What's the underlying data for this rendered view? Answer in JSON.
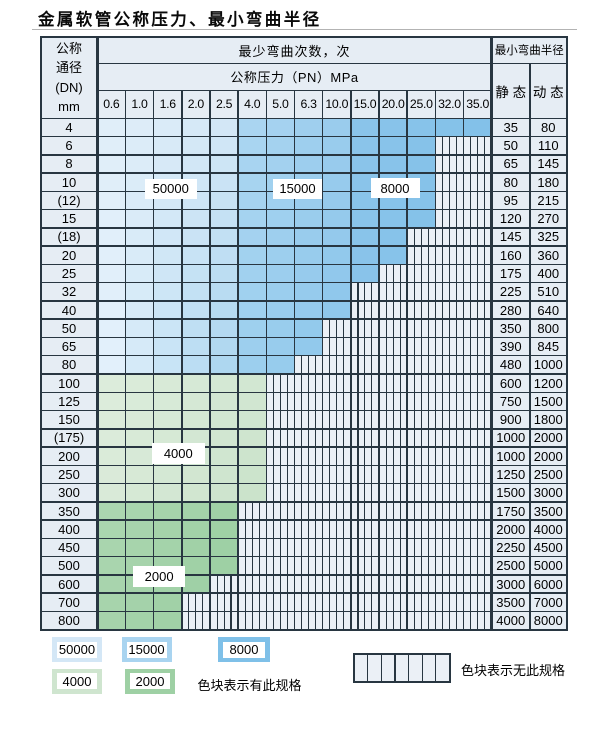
{
  "title": "金属软管公称压力、最小弯曲半径",
  "colors": {
    "grid_line": "#283641",
    "header_bg": "#e6edf4",
    "hatch_bg": "#ebf0f6",
    "blue_region_50000": {
      "tl": "#e0eef9",
      "tr": "#d3e7f6",
      "bl": "#e2f0fb",
      "br": "#aed7f0"
    },
    "blue_region_15000": {
      "tl": "#aad5f1",
      "tr": "#9acced",
      "bl": "#9ccfee",
      "br": "#8cc6eb"
    },
    "blue_region_8000": {
      "tl": "#8ac4ea",
      "tr": "#83c1e9",
      "bl": "#88c3ea",
      "br": "#7fbfe8"
    },
    "green_4000": {
      "tl": "#dcecdb",
      "tr": "#d2e7d2",
      "bl": "#d9ead8",
      "br": "#cbe3cb"
    },
    "green_2000": {
      "tl": "#abd6b0",
      "tr": "#a0d1a6",
      "bl": "#a6d3ab",
      "br": "#9bcea2"
    },
    "label_box_bg": "#ffffff"
  },
  "table": {
    "dn_header_lines": [
      "公称",
      "通径",
      "(DN)",
      "mm"
    ],
    "bend_times_header": "最少弯曲次数，次",
    "pressure_header": "公称压力（PN）MPa",
    "pressure_columns": [
      "0.6",
      "1.0",
      "1.6",
      "2.0",
      "2.5",
      "4.0",
      "5.0",
      "6.3",
      "10.0",
      "15.0",
      "20.0",
      "25.0",
      "32.0",
      "35.0"
    ],
    "radius_header": "最小弯曲半径",
    "static_header": "静 态",
    "dynamic_header": "动 态",
    "rows": [
      {
        "dn": "4",
        "zone": "blue",
        "max_pn": "35.0",
        "static": "35",
        "dynamic": "80"
      },
      {
        "dn": "6",
        "zone": "blue",
        "max_pn": "25.0",
        "static": "50",
        "dynamic": "110"
      },
      {
        "dn": "8",
        "zone": "blue",
        "max_pn": "25.0",
        "static": "65",
        "dynamic": "145"
      },
      {
        "dn": "10",
        "zone": "blue",
        "max_pn": "25.0",
        "static": "80",
        "dynamic": "180"
      },
      {
        "dn": "(12)",
        "zone": "blue",
        "max_pn": "25.0",
        "static": "95",
        "dynamic": "215"
      },
      {
        "dn": "15",
        "zone": "blue",
        "max_pn": "25.0",
        "static": "120",
        "dynamic": "270"
      },
      {
        "dn": "(18)",
        "zone": "blue",
        "max_pn": "20.0",
        "static": "145",
        "dynamic": "325"
      },
      {
        "dn": "20",
        "zone": "blue",
        "max_pn": "20.0",
        "static": "160",
        "dynamic": "360"
      },
      {
        "dn": "25",
        "zone": "blue",
        "max_pn": "15.0",
        "static": "175",
        "dynamic": "400"
      },
      {
        "dn": "32",
        "zone": "blue",
        "max_pn": "10.0",
        "static": "225",
        "dynamic": "510"
      },
      {
        "dn": "40",
        "zone": "blue",
        "max_pn": "10.0",
        "static": "280",
        "dynamic": "640"
      },
      {
        "dn": "50",
        "zone": "blue",
        "max_pn": "6.3",
        "static": "350",
        "dynamic": "800"
      },
      {
        "dn": "65",
        "zone": "blue",
        "max_pn": "6.3",
        "static": "390",
        "dynamic": "845"
      },
      {
        "dn": "80",
        "zone": "blue",
        "max_pn": "5.0",
        "static": "480",
        "dynamic": "1000"
      },
      {
        "dn": "100",
        "zone": "green4000",
        "max_pn": "4.0",
        "static": "600",
        "dynamic": "1200"
      },
      {
        "dn": "125",
        "zone": "green4000",
        "max_pn": "4.0",
        "static": "750",
        "dynamic": "1500"
      },
      {
        "dn": "150",
        "zone": "green4000",
        "max_pn": "4.0",
        "static": "900",
        "dynamic": "1800"
      },
      {
        "dn": "(175)",
        "zone": "green4000",
        "max_pn": "4.0",
        "static": "1000",
        "dynamic": "2000"
      },
      {
        "dn": "200",
        "zone": "green4000",
        "max_pn": "4.0",
        "static": "1000",
        "dynamic": "2000"
      },
      {
        "dn": "250",
        "zone": "green4000",
        "max_pn": "4.0",
        "static": "1250",
        "dynamic": "2500"
      },
      {
        "dn": "300",
        "zone": "green4000",
        "max_pn": "4.0",
        "static": "1500",
        "dynamic": "3000"
      },
      {
        "dn": "350",
        "zone": "green2000",
        "max_pn": "2.5",
        "static": "1750",
        "dynamic": "3500"
      },
      {
        "dn": "400",
        "zone": "green2000",
        "max_pn": "2.5",
        "static": "2000",
        "dynamic": "4000"
      },
      {
        "dn": "450",
        "zone": "green2000",
        "max_pn": "2.5",
        "static": "2250",
        "dynamic": "4500"
      },
      {
        "dn": "500",
        "zone": "green2000",
        "max_pn": "2.5",
        "static": "2500",
        "dynamic": "5000"
      },
      {
        "dn": "600",
        "zone": "green2000",
        "max_pn": "2.0",
        "static": "3000",
        "dynamic": "6000"
      },
      {
        "dn": "700",
        "zone": "green2000",
        "max_pn": "1.6",
        "static": "3500",
        "dynamic": "7000"
      },
      {
        "dn": "800",
        "zone": "green2000",
        "max_pn": "1.6",
        "static": "4000",
        "dynamic": "8000"
      }
    ]
  },
  "region_labels": [
    {
      "text": "50000"
    },
    {
      "text": "15000"
    },
    {
      "text": "8000"
    },
    {
      "text": "4000"
    },
    {
      "text": "2000"
    }
  ],
  "legend": {
    "swatches": [
      {
        "label": "50000",
        "color": "#d4e7f6"
      },
      {
        "label": "15000",
        "color": "#a9d4f0"
      },
      {
        "label": "8000",
        "color": "#7fc0e8"
      },
      {
        "label": "4000",
        "color": "#cfe5cf"
      },
      {
        "label": "2000",
        "color": "#9ed0a4"
      }
    ],
    "has_spec_note": "色块表示有此规格",
    "no_spec_note": "色块表示无此规格"
  },
  "chart_data": {
    "type": "table",
    "title": "金属软管公称压力、最小弯曲半径",
    "columns": [
      "公称通径(DN)mm",
      "0.6",
      "1.0",
      "1.6",
      "2.0",
      "2.5",
      "4.0",
      "5.0",
      "6.3",
      "10.0",
      "15.0",
      "20.0",
      "25.0",
      "32.0",
      "35.0",
      "静态",
      "动态"
    ],
    "bend_cycle_regions": [
      {
        "value": "50000",
        "pn_columns": [
          "0.6",
          "2.5"
        ],
        "dn_rows": [
          "4",
          "80"
        ]
      },
      {
        "value": "15000",
        "pn_columns": [
          "4.0",
          "10.0"
        ],
        "dn_rows": [
          "4",
          "80"
        ]
      },
      {
        "value": "8000",
        "pn_columns": [
          "15.0",
          "35.0"
        ],
        "dn_rows": [
          "4",
          "80"
        ]
      },
      {
        "value": "4000",
        "pn_columns": [
          "0.6",
          "4.0"
        ],
        "dn_rows": [
          "100",
          "300"
        ]
      },
      {
        "value": "2000",
        "pn_columns": [
          "0.6",
          "2.5"
        ],
        "dn_rows": [
          "350",
          "800"
        ]
      }
    ]
  }
}
